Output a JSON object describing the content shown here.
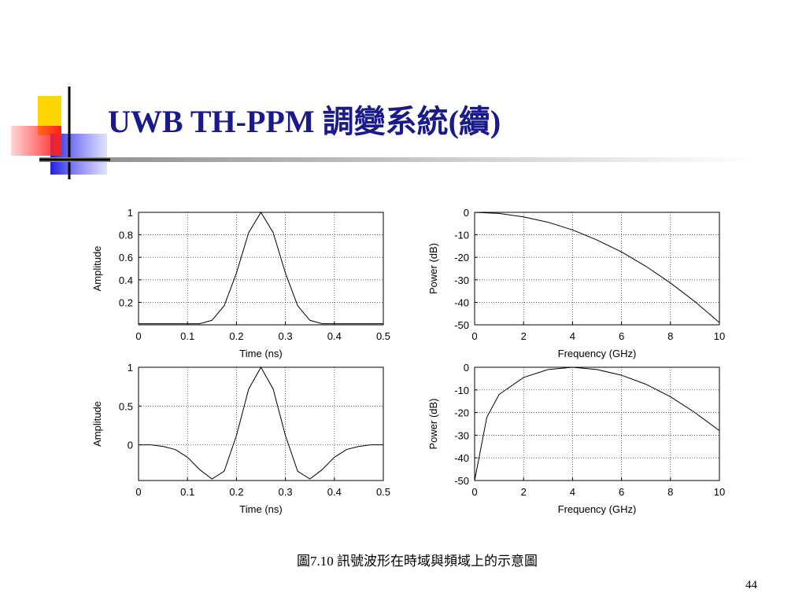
{
  "slide": {
    "title": "UWB TH-PPM 調變系統(續)",
    "caption": "圖7.10  訊號波形在時域與頻域上的示意圖",
    "page": "44"
  },
  "chart_data": [
    {
      "type": "line",
      "xlabel": "Time (ns)",
      "ylabel": "Amplitude",
      "color": "#000000",
      "grid": true,
      "x": [
        0,
        0.025,
        0.05,
        0.075,
        0.1,
        0.125,
        0.15,
        0.175,
        0.2,
        0.225,
        0.25,
        0.275,
        0.3,
        0.325,
        0.35,
        0.375,
        0.4,
        0.425,
        0.45,
        0.475,
        0.5
      ],
      "values": [
        0.01,
        0.01,
        0.01,
        0.01,
        0.01,
        0.01,
        0.04,
        0.17,
        0.46,
        0.82,
        1,
        0.82,
        0.46,
        0.17,
        0.04,
        0.01,
        0.01,
        0.01,
        0.01,
        0.01,
        0.01
      ],
      "xlim": [
        0,
        0.5
      ],
      "xticks": [
        0,
        0.1,
        0.2,
        0.3,
        0.4,
        0.5
      ],
      "ylim": [
        0,
        1
      ],
      "yticks": [
        0.2,
        0.4,
        0.6,
        0.8,
        1
      ]
    },
    {
      "type": "line",
      "xlabel": "Frequency (GHz)",
      "ylabel": "Power (dB)",
      "color": "#000000",
      "grid": true,
      "x": [
        0,
        1,
        2,
        3,
        4,
        5,
        6,
        7,
        8,
        9,
        10
      ],
      "values": [
        0,
        -0.5,
        -2,
        -4.4,
        -7.8,
        -12.3,
        -17.6,
        -24,
        -31.4,
        -39.7,
        -49
      ],
      "xlim": [
        0,
        10
      ],
      "xticks": [
        0,
        2,
        4,
        6,
        8,
        10
      ],
      "ylim": [
        -50,
        0
      ],
      "yticks": [
        -50,
        -40,
        -30,
        -20,
        -10,
        0
      ]
    },
    {
      "type": "line",
      "xlabel": "Time (ns)",
      "ylabel": "Amplitude",
      "color": "#000000",
      "grid": true,
      "x": [
        0,
        0.025,
        0.05,
        0.075,
        0.1,
        0.125,
        0.15,
        0.175,
        0.2,
        0.225,
        0.25,
        0.275,
        0.3,
        0.325,
        0.35,
        0.375,
        0.4,
        0.425,
        0.45,
        0.475,
        0.5
      ],
      "values": [
        0,
        0,
        -0.02,
        -0.06,
        -0.16,
        -0.32,
        -0.44,
        -0.34,
        0.12,
        0.72,
        1,
        0.72,
        0.12,
        -0.34,
        -0.44,
        -0.32,
        -0.16,
        -0.06,
        -0.02,
        0,
        0
      ],
      "xlim": [
        0,
        0.5
      ],
      "xticks": [
        0,
        0.1,
        0.2,
        0.3,
        0.4,
        0.5
      ],
      "ylim": [
        -0.46,
        1
      ],
      "yticks": [
        0,
        0.5,
        1
      ]
    },
    {
      "type": "line",
      "xlabel": "Frequency (GHz)",
      "ylabel": "Power (dB)",
      "color": "#000000",
      "grid": true,
      "x": [
        0,
        0.5,
        1,
        2,
        3,
        4,
        5,
        6,
        7,
        8,
        9,
        10
      ],
      "values": [
        -50,
        -22,
        -12,
        -4.5,
        -1,
        0,
        -1,
        -3.5,
        -7.5,
        -13,
        -20,
        -28
      ],
      "xlim": [
        0,
        10
      ],
      "xticks": [
        0,
        2,
        4,
        6,
        8,
        10
      ],
      "ylim": [
        -50,
        0
      ],
      "yticks": [
        -50,
        -40,
        -30,
        -20,
        -10,
        0
      ]
    }
  ]
}
